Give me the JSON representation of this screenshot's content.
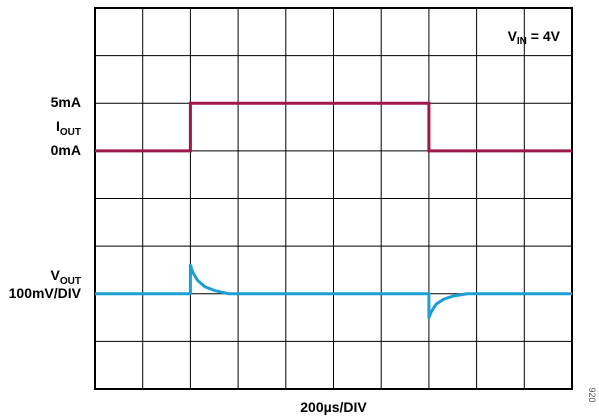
{
  "chart_data": {
    "type": "line",
    "grid": true,
    "divisions": {
      "x": 10,
      "y": 8
    },
    "xlabel": "200µs/DIV",
    "annotation": {
      "prefix": "V",
      "sub": "IN",
      "suffix": " = 4V"
    },
    "series": [
      {
        "channel": "IOUT",
        "color": "#a0174b",
        "label_main": "I",
        "label_sub": "OUT",
        "levels": [
          {
            "text": "5mA",
            "value": 5
          },
          {
            "text": "0mA",
            "value": 0
          }
        ],
        "units": "mA",
        "x_div": [
          0,
          2.0,
          2.0,
          7.0,
          7.0,
          10
        ],
        "y_val": [
          0,
          0,
          5,
          5,
          0,
          0
        ]
      },
      {
        "channel": "VOUT",
        "color": "#1d9fd6",
        "label_main": "V",
        "label_sub": "OUT",
        "scale_text": "100mV/DIV",
        "x_div": [
          0,
          2.0,
          2.0,
          2.05,
          2.15,
          2.3,
          2.5,
          2.8,
          7.0,
          7.0,
          7.05,
          7.15,
          7.3,
          7.5,
          7.8,
          10
        ],
        "y_div": [
          0,
          0,
          0.6,
          0.45,
          0.28,
          0.15,
          0.07,
          0,
          0,
          -0.5,
          -0.38,
          -0.22,
          -0.12,
          -0.05,
          0,
          0
        ]
      }
    ]
  },
  "footnote": "920"
}
